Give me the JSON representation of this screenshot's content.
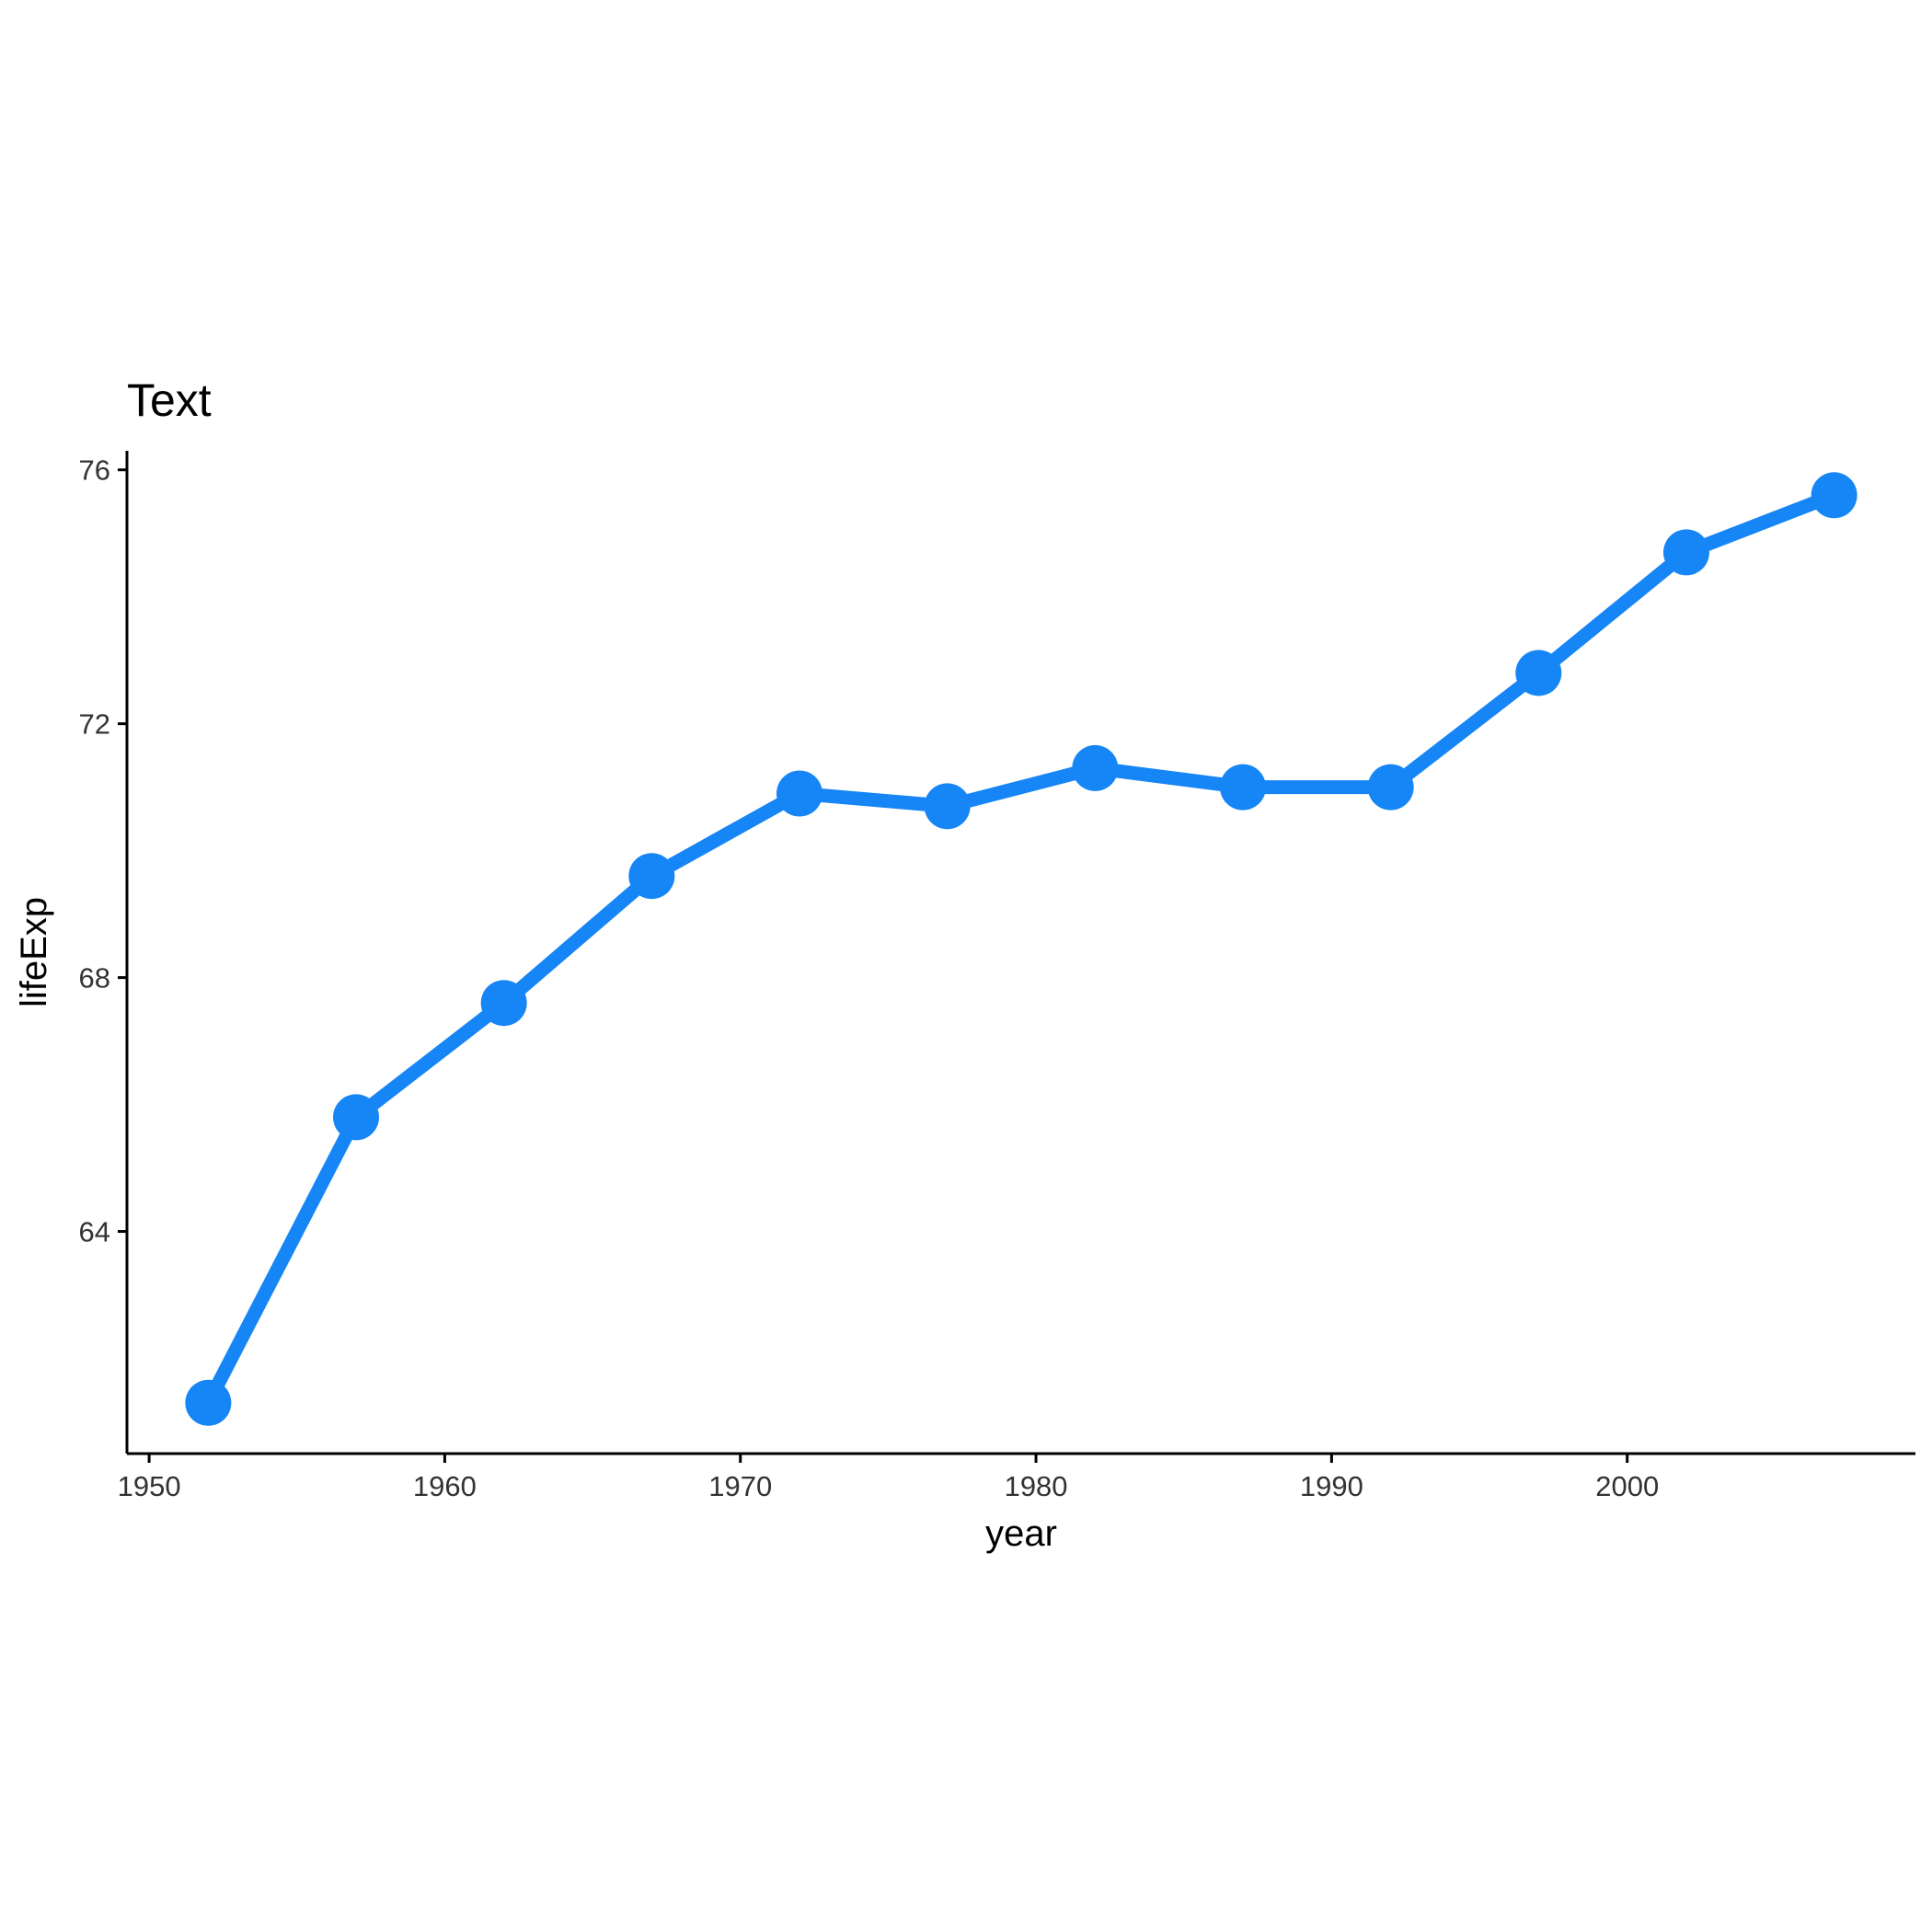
{
  "chart_data": {
    "type": "line",
    "title": "Text",
    "xlabel": "year",
    "ylabel": "lifeExp",
    "x": [
      1952,
      1957,
      1962,
      1967,
      1972,
      1977,
      1982,
      1987,
      1992,
      1997,
      2002,
      2007
    ],
    "series": [
      {
        "values": [
          61.3,
          65.8,
          67.6,
          69.6,
          70.9,
          70.7,
          71.3,
          71.0,
          71.0,
          72.8,
          74.7,
          75.6
        ],
        "color": "#1685F5"
      }
    ],
    "xlim": [
      1949.25,
      2009.75
    ],
    "ylim": [
      60.5,
      76.3
    ],
    "xticks": [
      1950,
      1960,
      1970,
      1980,
      1990,
      2000
    ],
    "yticks": [
      64,
      68,
      72,
      76
    ],
    "grid": false,
    "legend": "none"
  }
}
